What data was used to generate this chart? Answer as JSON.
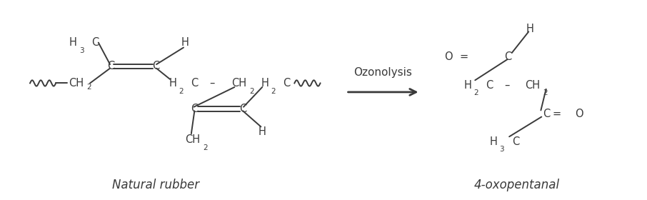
{
  "bg_color": "#ffffff",
  "text_color": "#3a3a3a",
  "label_natural_rubber": "Natural rubber",
  "label_product": "4-oxopentanal",
  "label_reaction": "Ozonolysis",
  "figsize": [
    9.06,
    2.8
  ],
  "dpi": 100
}
